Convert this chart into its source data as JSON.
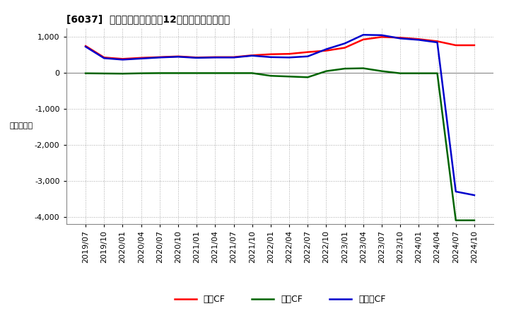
{
  "title": "[6037]  キャッシュフローの12か月移動合計の推移",
  "ylabel": "（百万円）",
  "ylim": [
    -4200,
    1250
  ],
  "yticks": [
    1000,
    0,
    -1000,
    -2000,
    -3000,
    -4000
  ],
  "bg_color": "#ffffff",
  "plot_bg_color": "#ffffff",
  "grid_color": "#aaaaaa",
  "dates": [
    "2019/07",
    "2019/10",
    "2020/01",
    "2020/04",
    "2020/07",
    "2020/10",
    "2021/01",
    "2021/04",
    "2021/07",
    "2021/10",
    "2022/01",
    "2022/04",
    "2022/07",
    "2022/10",
    "2023/01",
    "2023/04",
    "2023/07",
    "2023/10",
    "2024/01",
    "2024/04",
    "2024/07",
    "2024/10"
  ],
  "operating_cf": [
    750,
    430,
    390,
    420,
    440,
    460,
    430,
    440,
    440,
    490,
    520,
    530,
    580,
    620,
    700,
    930,
    1000,
    980,
    940,
    880,
    770,
    770
  ],
  "investing_cf": [
    -10,
    -15,
    -20,
    -10,
    -5,
    -5,
    -5,
    -5,
    -5,
    -5,
    -80,
    -100,
    -120,
    50,
    120,
    130,
    50,
    -10,
    -10,
    -10,
    -4100,
    -4100
  ],
  "free_cf": [
    730,
    410,
    370,
    400,
    430,
    450,
    420,
    430,
    430,
    480,
    440,
    430,
    460,
    660,
    820,
    1060,
    1050,
    960,
    920,
    850,
    -3300,
    -3400
  ],
  "operating_color": "#ff0000",
  "investing_color": "#006400",
  "free_color": "#0000cc",
  "line_width": 1.8
}
